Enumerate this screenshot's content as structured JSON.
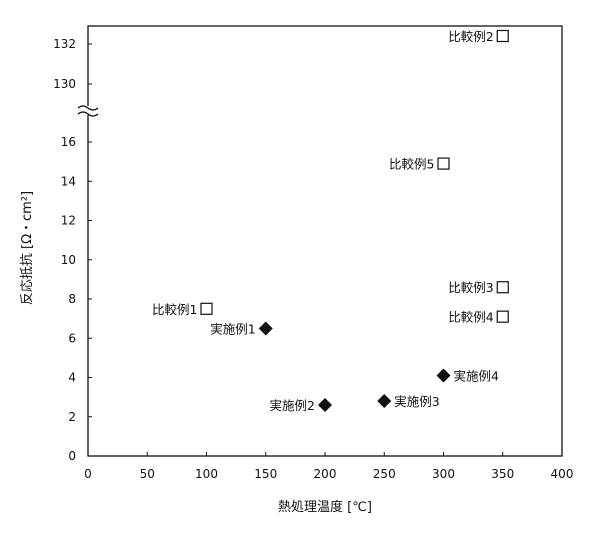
{
  "chart_data": {
    "type": "scatter",
    "xlabel": "熱処理温度 [℃]",
    "ylabel": "反応抵抗 [Ω・cm²]",
    "xlim": [
      0,
      400
    ],
    "x_ticks": [
      "0",
      "50",
      "100",
      "150",
      "200",
      "250",
      "300",
      "350",
      "400"
    ],
    "y_ticks_lower": [
      "0",
      "2",
      "4",
      "6",
      "8",
      "10",
      "12",
      "14",
      "16"
    ],
    "y_ticks_upper": [
      "130",
      "132"
    ],
    "y_axis_break": true,
    "series": [
      {
        "marker": "filled-diamond",
        "points": [
          {
            "label": "実施例1",
            "x": 150,
            "y": 6.5
          },
          {
            "label": "実施例2",
            "x": 200,
            "y": 2.6
          },
          {
            "label": "実施例3",
            "x": 250,
            "y": 2.8
          },
          {
            "label": "実施例4",
            "x": 300,
            "y": 4.1
          }
        ]
      },
      {
        "marker": "open-square",
        "points": [
          {
            "label": "比較例1",
            "x": 100,
            "y": 7.5
          },
          {
            "label": "比較例2",
            "x": 350,
            "y": 132.4
          },
          {
            "label": "比較例3",
            "x": 350,
            "y": 8.6
          },
          {
            "label": "比較例4",
            "x": 350,
            "y": 7.1
          },
          {
            "label": "比較例5",
            "x": 300,
            "y": 14.9
          }
        ]
      }
    ]
  }
}
